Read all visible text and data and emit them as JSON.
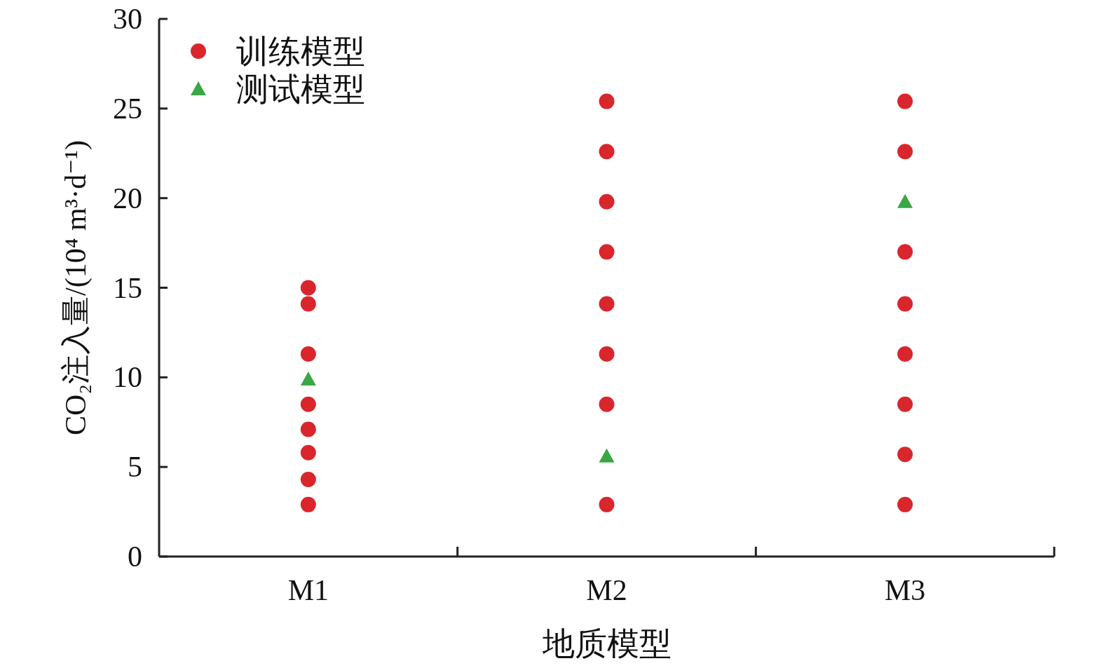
{
  "chart_data": {
    "type": "scatter",
    "xlabel": "地质模型",
    "ylabel": "CO₂注入量/(10⁴ m³·d⁻¹)",
    "categories": [
      "M1",
      "M2",
      "M3"
    ],
    "ylim": [
      0,
      30
    ],
    "yticks": [
      0,
      5,
      10,
      15,
      20,
      25,
      30
    ],
    "legend": "top left",
    "series": [
      {
        "name": "训练模型",
        "color": "#d9262c",
        "marker": "circle",
        "x": [
          "M1",
          "M1",
          "M1",
          "M1",
          "M1",
          "M1",
          "M1",
          "M1",
          "M2",
          "M2",
          "M2",
          "M2",
          "M2",
          "M2",
          "M2",
          "M2",
          "M3",
          "M3",
          "M3",
          "M3",
          "M3",
          "M3",
          "M3",
          "M3"
        ],
        "values": [
          15,
          14.1,
          11.3,
          8.5,
          7.1,
          5.8,
          4.3,
          2.9,
          25.4,
          22.6,
          19.8,
          17.0,
          14.1,
          11.3,
          8.5,
          2.9,
          25.4,
          22.6,
          17.0,
          14.1,
          11.3,
          8.5,
          5.7,
          2.9
        ]
      },
      {
        "name": "测试模型",
        "color": "#3aa646",
        "marker": "triangle",
        "x": [
          "M1",
          "M2",
          "M3"
        ],
        "values": [
          9.9,
          5.6,
          19.8
        ]
      }
    ]
  }
}
